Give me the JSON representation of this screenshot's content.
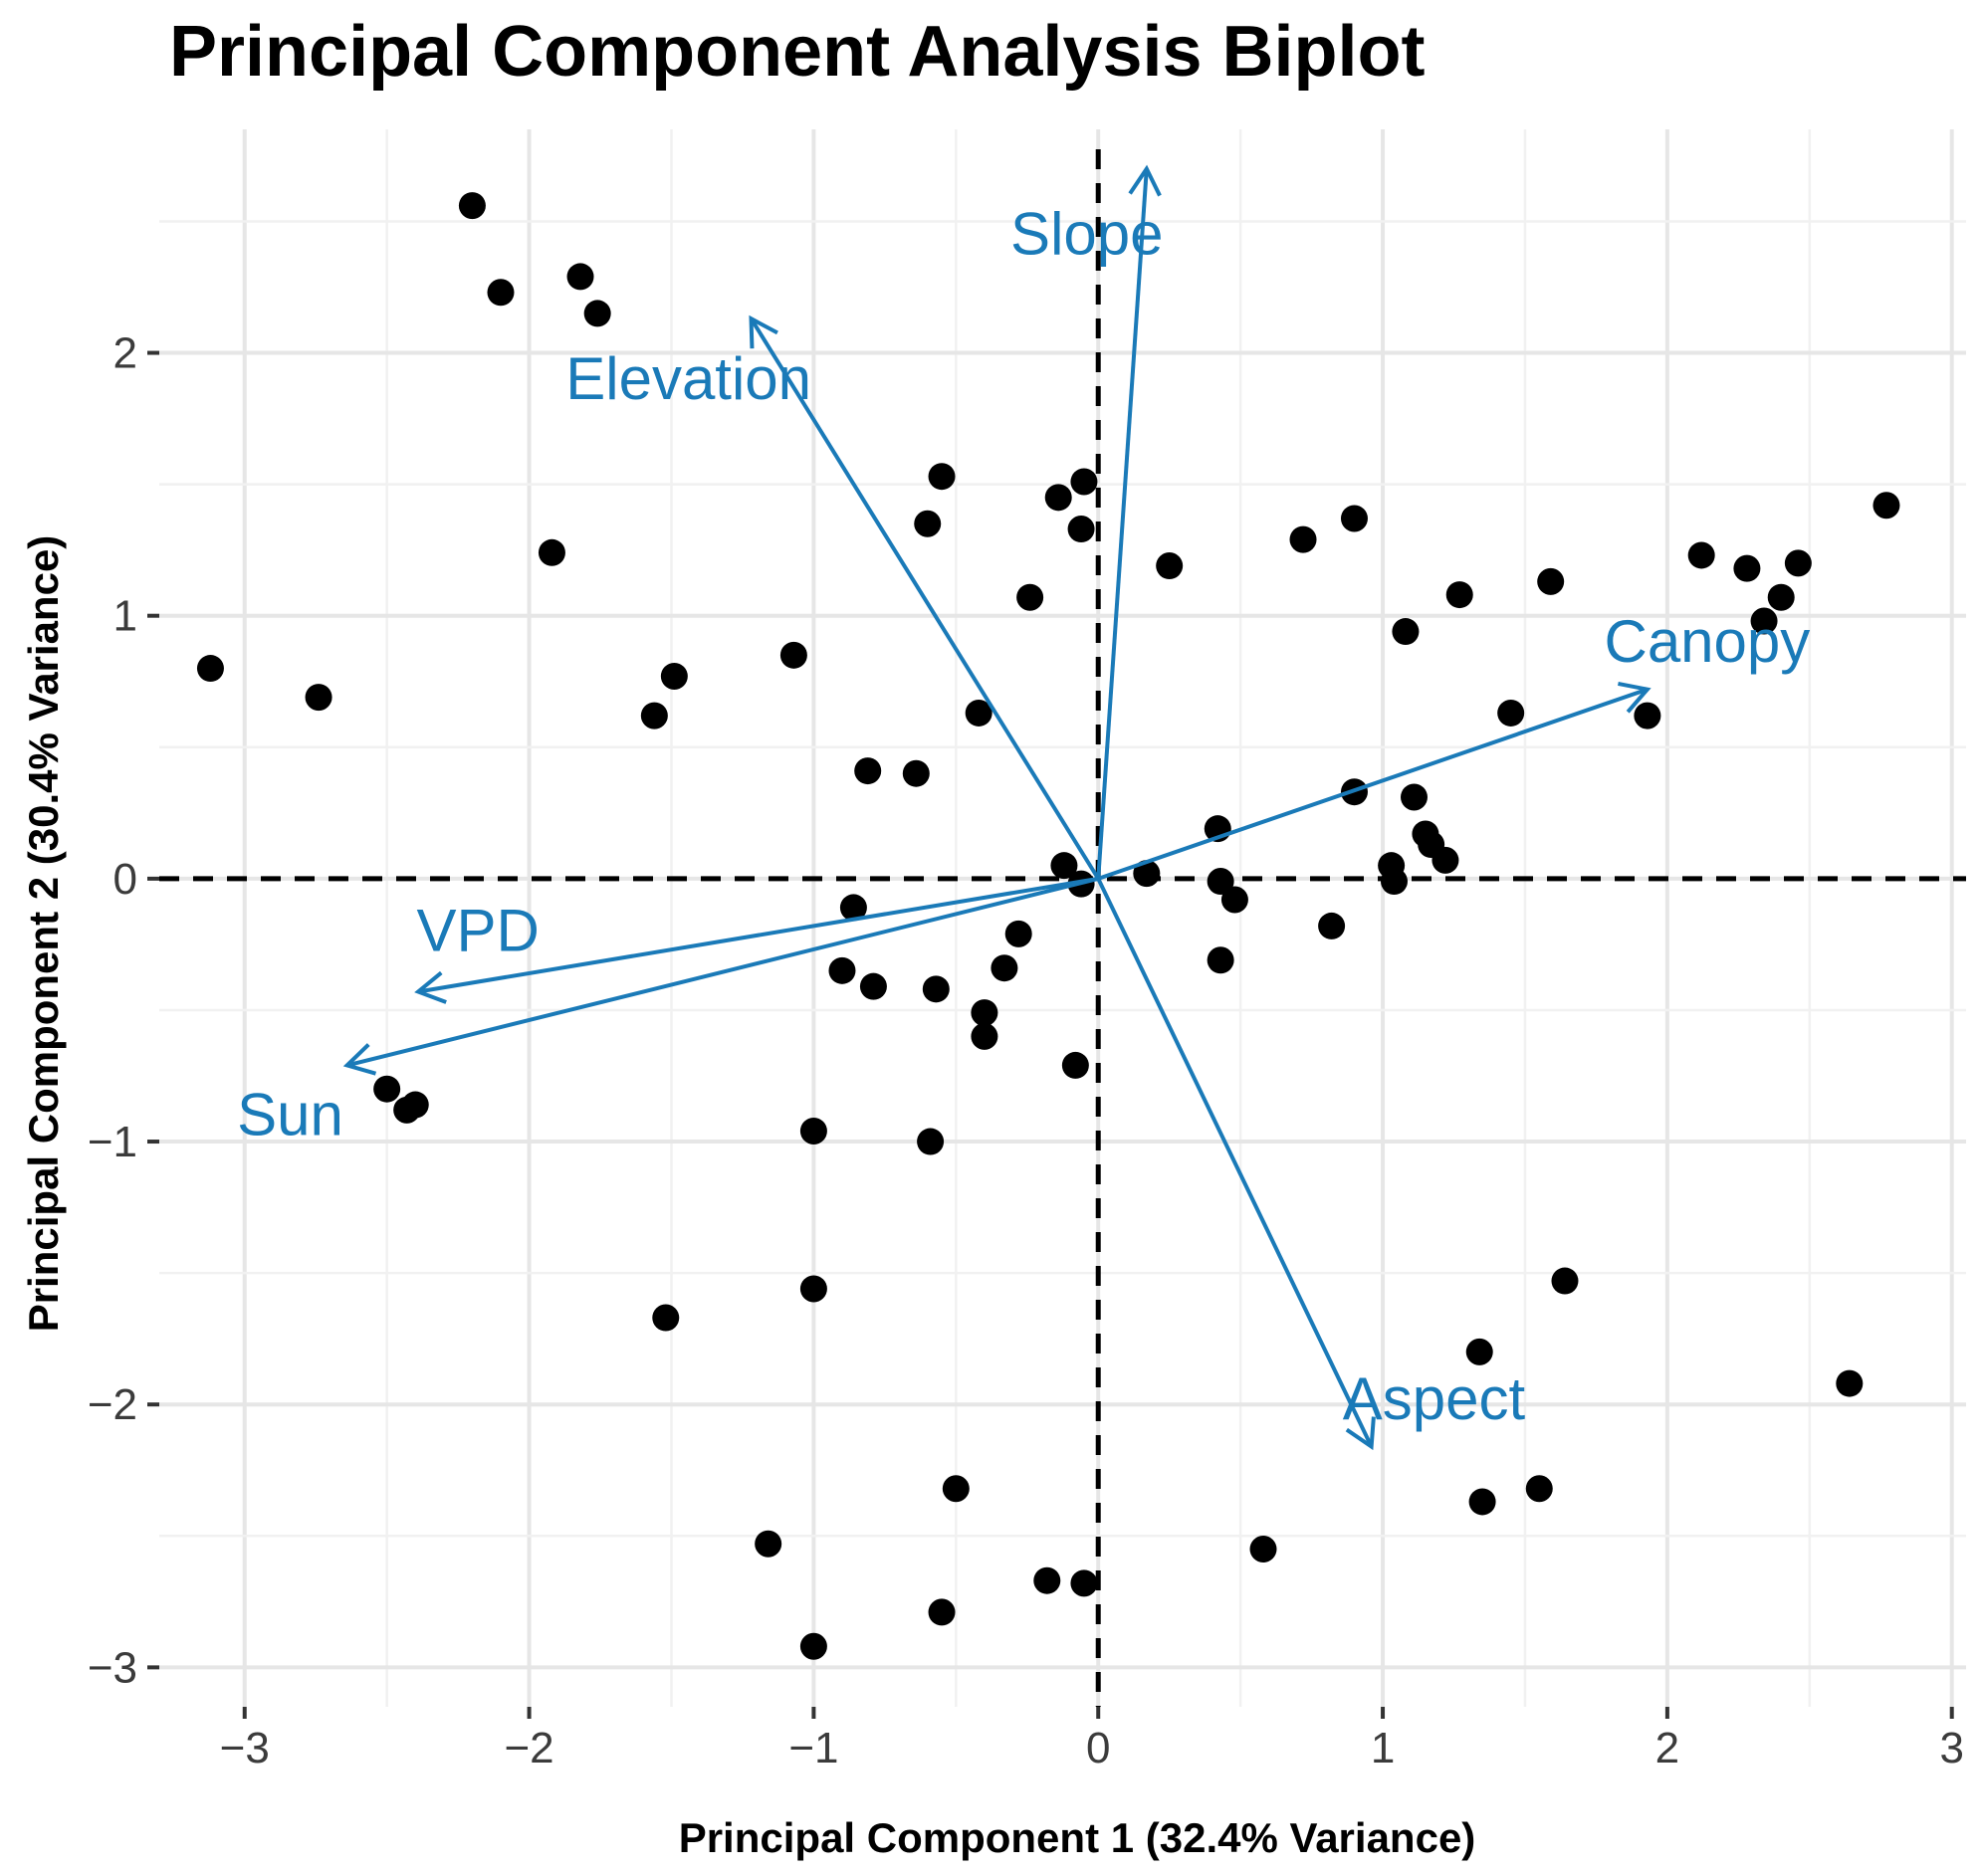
{
  "chart_data": {
    "type": "scatter",
    "title": "Principal Component Analysis Biplot",
    "xlabel": "Principal Component 1 (32.4% Variance)",
    "ylabel": "Principal Component 2 (30.4% Variance)",
    "xlim": [
      -3.3,
      3.05
    ],
    "ylim": [
      -3.15,
      2.85
    ],
    "xticks": [
      -3,
      -2,
      -1,
      0,
      1,
      2,
      3
    ],
    "yticks": [
      -3,
      -2,
      -1,
      0,
      1,
      2
    ],
    "xtick_labels": [
      "−3",
      "−2",
      "−1",
      "0",
      "1",
      "2",
      "3"
    ],
    "ytick_labels": [
      "−3",
      "−2",
      "−1",
      "0",
      "1",
      "2"
    ],
    "grid": true,
    "reference_lines": {
      "x": 0,
      "y": 0,
      "style": "dashed"
    },
    "points": [
      {
        "x": -2.2,
        "y": 2.56
      },
      {
        "x": -2.1,
        "y": 2.23
      },
      {
        "x": -1.82,
        "y": 2.29
      },
      {
        "x": -1.76,
        "y": 2.15
      },
      {
        "x": -1.92,
        "y": 1.24
      },
      {
        "x": -3.12,
        "y": 0.8
      },
      {
        "x": -2.74,
        "y": 0.69
      },
      {
        "x": -1.49,
        "y": 0.77
      },
      {
        "x": -1.56,
        "y": 0.62
      },
      {
        "x": -1.07,
        "y": 0.85
      },
      {
        "x": -0.55,
        "y": 1.53
      },
      {
        "x": -0.6,
        "y": 1.35
      },
      {
        "x": -0.24,
        "y": 1.07
      },
      {
        "x": -0.14,
        "y": 1.45
      },
      {
        "x": -0.05,
        "y": 1.51
      },
      {
        "x": -0.06,
        "y": 1.33
      },
      {
        "x": 0.25,
        "y": 1.19
      },
      {
        "x": 0.72,
        "y": 1.29
      },
      {
        "x": 0.9,
        "y": 1.37
      },
      {
        "x": 1.27,
        "y": 1.08
      },
      {
        "x": 1.08,
        "y": 0.94
      },
      {
        "x": 1.59,
        "y": 1.13
      },
      {
        "x": 2.12,
        "y": 1.23
      },
      {
        "x": 2.28,
        "y": 1.18
      },
      {
        "x": 2.46,
        "y": 1.2
      },
      {
        "x": 2.4,
        "y": 1.07
      },
      {
        "x": 2.34,
        "y": 0.98
      },
      {
        "x": 2.77,
        "y": 1.42
      },
      {
        "x": 1.45,
        "y": 0.63
      },
      {
        "x": 1.93,
        "y": 0.62
      },
      {
        "x": -0.42,
        "y": 0.63
      },
      {
        "x": -0.81,
        "y": 0.41
      },
      {
        "x": -0.64,
        "y": 0.4
      },
      {
        "x": 0.9,
        "y": 0.33
      },
      {
        "x": 1.11,
        "y": 0.31
      },
      {
        "x": 1.15,
        "y": 0.17
      },
      {
        "x": 1.17,
        "y": 0.13
      },
      {
        "x": 1.22,
        "y": 0.07
      },
      {
        "x": 1.03,
        "y": 0.05
      },
      {
        "x": 1.04,
        "y": -0.01
      },
      {
        "x": 0.42,
        "y": 0.19
      },
      {
        "x": 0.43,
        "y": -0.01
      },
      {
        "x": 0.48,
        "y": -0.08
      },
      {
        "x": 0.17,
        "y": 0.02
      },
      {
        "x": -0.12,
        "y": 0.05
      },
      {
        "x": -0.06,
        "y": -0.02
      },
      {
        "x": -0.86,
        "y": -0.11
      },
      {
        "x": -0.28,
        "y": -0.21
      },
      {
        "x": 0.82,
        "y": -0.18
      },
      {
        "x": 0.43,
        "y": -0.31
      },
      {
        "x": -0.9,
        "y": -0.35
      },
      {
        "x": -0.79,
        "y": -0.41
      },
      {
        "x": -0.57,
        "y": -0.42
      },
      {
        "x": -0.33,
        "y": -0.34
      },
      {
        "x": -0.4,
        "y": -0.51
      },
      {
        "x": -0.4,
        "y": -0.6
      },
      {
        "x": -0.08,
        "y": -0.71
      },
      {
        "x": -2.5,
        "y": -0.8
      },
      {
        "x": -2.43,
        "y": -0.88
      },
      {
        "x": -2.4,
        "y": -0.86
      },
      {
        "x": -1.0,
        "y": -0.96
      },
      {
        "x": -0.59,
        "y": -1.0
      },
      {
        "x": -1.0,
        "y": -1.56
      },
      {
        "x": -1.52,
        "y": -1.67
      },
      {
        "x": 1.64,
        "y": -1.53
      },
      {
        "x": 1.34,
        "y": -1.8
      },
      {
        "x": 2.64,
        "y": -1.92
      },
      {
        "x": -0.5,
        "y": -2.32
      },
      {
        "x": 1.35,
        "y": -2.37
      },
      {
        "x": 1.55,
        "y": -2.32
      },
      {
        "x": -1.16,
        "y": -2.53
      },
      {
        "x": 0.58,
        "y": -2.55
      },
      {
        "x": -0.18,
        "y": -2.67
      },
      {
        "x": -0.05,
        "y": -2.68
      },
      {
        "x": -0.55,
        "y": -2.79
      },
      {
        "x": -1.0,
        "y": -2.92
      }
    ],
    "loadings": [
      {
        "name": "Slope",
        "x": 0.17,
        "y": 2.7,
        "label_x": -0.04,
        "label_y": 2.45
      },
      {
        "name": "Elevation",
        "x": -1.22,
        "y": 2.13,
        "label_x": -1.44,
        "label_y": 1.9
      },
      {
        "name": "Canopy",
        "x": 1.93,
        "y": 0.72,
        "label_x": 2.14,
        "label_y": 0.9
      },
      {
        "name": "VPD",
        "x": -2.39,
        "y": -0.43,
        "label_x": -2.18,
        "label_y": -0.2
      },
      {
        "name": "Sun",
        "x": -2.64,
        "y": -0.71,
        "label_x": -2.84,
        "label_y": -0.9
      },
      {
        "name": "Aspect",
        "x": 0.96,
        "y": -2.16,
        "label_x": 1.18,
        "label_y": -1.98
      }
    ]
  }
}
